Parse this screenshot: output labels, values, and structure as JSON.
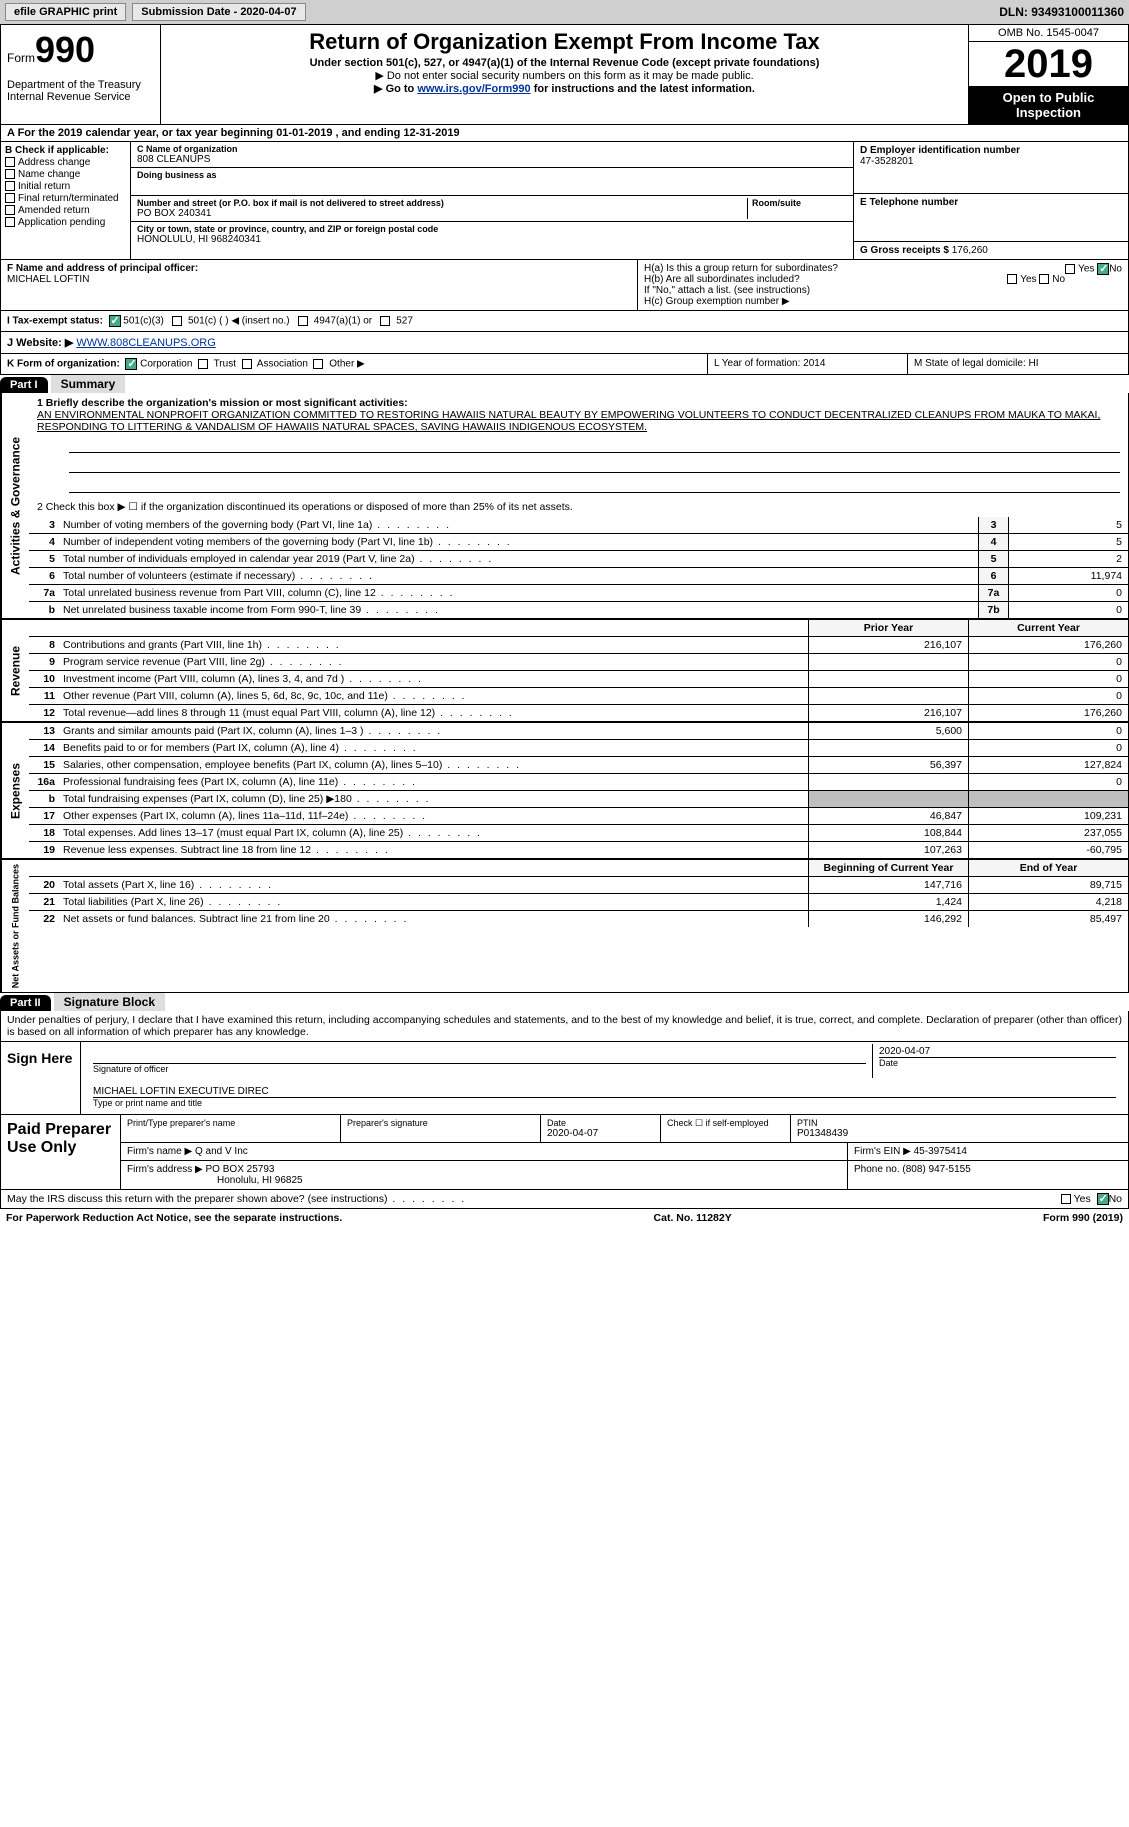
{
  "top": {
    "efile": "efile GRAPHIC print",
    "sub_date_label": "Submission Date - 2020-04-07",
    "dln": "DLN: 93493100011360"
  },
  "header": {
    "form_word": "Form",
    "form_num": "990",
    "title": "Return of Organization Exempt From Income Tax",
    "sub1": "Under section 501(c), 527, or 4947(a)(1) of the Internal Revenue Code (except private foundations)",
    "sub2": "▶ Do not enter social security numbers on this form as it may be made public.",
    "sub3_pre": "▶ Go to ",
    "sub3_link": "www.irs.gov/Form990",
    "sub3_post": " for instructions and the latest information.",
    "dept": "Department of the Treasury\nInternal Revenue Service",
    "omb": "OMB No. 1545-0047",
    "year": "2019",
    "open": "Open to Public Inspection"
  },
  "cal_year": "A For the 2019 calendar year, or tax year beginning 01-01-2019   , and ending 12-31-2019",
  "box_b": {
    "title": "B Check if applicable:",
    "items": [
      "Address change",
      "Name change",
      "Initial return",
      "Final return/terminated",
      "Amended return",
      "Application pending"
    ]
  },
  "box_c": {
    "name_label": "C Name of organization",
    "name": "808 CLEANUPS",
    "dba_label": "Doing business as",
    "dba": "",
    "addr_label": "Number and street (or P.O. box if mail is not delivered to street address)",
    "room_label": "Room/suite",
    "addr": "PO BOX 240341",
    "city_label": "City or town, state or province, country, and ZIP or foreign postal code",
    "city": "HONOLULU, HI  968240341"
  },
  "box_d": {
    "label": "D Employer identification number",
    "val": "47-3528201"
  },
  "box_e": {
    "label": "E Telephone number",
    "val": ""
  },
  "box_g": {
    "label": "G Gross receipts $",
    "val": "176,260"
  },
  "box_f": {
    "label": "F  Name and address of principal officer:",
    "val": "MICHAEL LOFTIN"
  },
  "box_h": {
    "ha": "H(a)  Is this a group return for subordinates?",
    "hb": "H(b)  Are all subordinates included?",
    "hb_note": "If \"No,\" attach a list. (see instructions)",
    "hc": "H(c)  Group exemption number ▶",
    "yes": "Yes",
    "no": "No"
  },
  "box_i": {
    "label": "I  Tax-exempt status:",
    "opts": [
      "501(c)(3)",
      "501(c) (  ) ◀ (insert no.)",
      "4947(a)(1) or",
      "527"
    ]
  },
  "box_j": {
    "label": "J  Website: ▶",
    "val": "WWW.808CLEANUPS.ORG"
  },
  "box_k": {
    "label": "K Form of organization:",
    "opts": [
      "Corporation",
      "Trust",
      "Association",
      "Other ▶"
    ]
  },
  "box_l": "L Year of formation: 2014",
  "box_m": "M State of legal domicile: HI",
  "part1": {
    "hdr": "Part I",
    "title": "Summary",
    "sidebar1": "Activities & Governance",
    "sidebar2": "Revenue",
    "sidebar3": "Expenses",
    "sidebar4": "Net Assets or Fund Balances",
    "mission_label": "1  Briefly describe the organization's mission or most significant activities:",
    "mission": "AN ENVIRONMENTAL NONPROFIT ORGANIZATION COMMITTED TO RESTORING HAWAIIS NATURAL BEAUTY BY EMPOWERING VOLUNTEERS TO CONDUCT DECENTRALIZED CLEANUPS FROM MAUKA TO MAKAI, RESPONDING TO LITTERING & VANDALISM OF HAWAIIS NATURAL SPACES, SAVING HAWAIIS INDIGENOUS ECOSYSTEM.",
    "line2": "2   Check this box ▶ ☐  if the organization discontinued its operations or disposed of more than 25% of its net assets.",
    "lines_gov": [
      {
        "n": "3",
        "t": "Number of voting members of the governing body (Part VI, line 1a)",
        "r": "3",
        "v": "5"
      },
      {
        "n": "4",
        "t": "Number of independent voting members of the governing body (Part VI, line 1b)",
        "r": "4",
        "v": "5"
      },
      {
        "n": "5",
        "t": "Total number of individuals employed in calendar year 2019 (Part V, line 2a)",
        "r": "5",
        "v": "2"
      },
      {
        "n": "6",
        "t": "Total number of volunteers (estimate if necessary)",
        "r": "6",
        "v": "11,974"
      },
      {
        "n": "7a",
        "t": "Total unrelated business revenue from Part VIII, column (C), line 12",
        "r": "7a",
        "v": "0"
      },
      {
        "n": "b",
        "t": "Net unrelated business taxable income from Form 990-T, line 39",
        "r": "7b",
        "v": "0"
      }
    ],
    "col_prior": "Prior Year",
    "col_current": "Current Year",
    "lines_rev": [
      {
        "n": "8",
        "t": "Contributions and grants (Part VIII, line 1h)",
        "p": "216,107",
        "c": "176,260"
      },
      {
        "n": "9",
        "t": "Program service revenue (Part VIII, line 2g)",
        "p": "",
        "c": "0"
      },
      {
        "n": "10",
        "t": "Investment income (Part VIII, column (A), lines 3, 4, and 7d )",
        "p": "",
        "c": "0"
      },
      {
        "n": "11",
        "t": "Other revenue (Part VIII, column (A), lines 5, 6d, 8c, 9c, 10c, and 11e)",
        "p": "",
        "c": "0"
      },
      {
        "n": "12",
        "t": "Total revenue—add lines 8 through 11 (must equal Part VIII, column (A), line 12)",
        "p": "216,107",
        "c": "176,260"
      }
    ],
    "lines_exp": [
      {
        "n": "13",
        "t": "Grants and similar amounts paid (Part IX, column (A), lines 1–3 )",
        "p": "5,600",
        "c": "0"
      },
      {
        "n": "14",
        "t": "Benefits paid to or for members (Part IX, column (A), line 4)",
        "p": "",
        "c": "0"
      },
      {
        "n": "15",
        "t": "Salaries, other compensation, employee benefits (Part IX, column (A), lines 5–10)",
        "p": "56,397",
        "c": "127,824"
      },
      {
        "n": "16a",
        "t": "Professional fundraising fees (Part IX, column (A), line 11e)",
        "p": "",
        "c": "0"
      },
      {
        "n": "b",
        "t": "Total fundraising expenses (Part IX, column (D), line 25) ▶180",
        "p": "gray",
        "c": "gray"
      },
      {
        "n": "17",
        "t": "Other expenses (Part IX, column (A), lines 11a–11d, 11f–24e)",
        "p": "46,847",
        "c": "109,231"
      },
      {
        "n": "18",
        "t": "Total expenses. Add lines 13–17 (must equal Part IX, column (A), line 25)",
        "p": "108,844",
        "c": "237,055"
      },
      {
        "n": "19",
        "t": "Revenue less expenses. Subtract line 18 from line 12",
        "p": "107,263",
        "c": "-60,795"
      }
    ],
    "col_begin": "Beginning of Current Year",
    "col_end": "End of Year",
    "lines_net": [
      {
        "n": "20",
        "t": "Total assets (Part X, line 16)",
        "p": "147,716",
        "c": "89,715"
      },
      {
        "n": "21",
        "t": "Total liabilities (Part X, line 26)",
        "p": "1,424",
        "c": "4,218"
      },
      {
        "n": "22",
        "t": "Net assets or fund balances. Subtract line 21 from line 20",
        "p": "146,292",
        "c": "85,497"
      }
    ]
  },
  "part2": {
    "hdr": "Part II",
    "title": "Signature Block",
    "perjury": "Under penalties of perjury, I declare that I have examined this return, including accompanying schedules and statements, and to the best of my knowledge and belief, it is true, correct, and complete. Declaration of preparer (other than officer) is based on all information of which preparer has any knowledge.",
    "sign_here": "Sign Here",
    "sig_officer": "Signature of officer",
    "sig_date": "2020-04-07",
    "date_label": "Date",
    "officer_name": "MICHAEL LOFTIN  EXECUTIVE DIREC",
    "name_label": "Type or print name and title",
    "paid_prep": "Paid Preparer Use Only",
    "prep_name_label": "Print/Type preparer's name",
    "prep_sig_label": "Preparer's signature",
    "prep_date_label": "Date",
    "prep_date": "2020-04-07",
    "check_self": "Check ☐ if self-employed",
    "ptin_label": "PTIN",
    "ptin": "P01348439",
    "firm_name_label": "Firm's name    ▶",
    "firm_name": "Q and V Inc",
    "firm_ein_label": "Firm's EIN ▶",
    "firm_ein": "45-3975414",
    "firm_addr_label": "Firm's address ▶",
    "firm_addr": "PO BOX 25793",
    "firm_city": "Honolulu, HI  96825",
    "phone_label": "Phone no.",
    "phone": "(808) 947-5155"
  },
  "footer": {
    "discuss": "May the IRS discuss this return with the preparer shown above? (see instructions)",
    "yes": "Yes",
    "no": "No",
    "paperwork": "For Paperwork Reduction Act Notice, see the separate instructions.",
    "cat": "Cat. No. 11282Y",
    "form": "Form 990 (2019)"
  }
}
